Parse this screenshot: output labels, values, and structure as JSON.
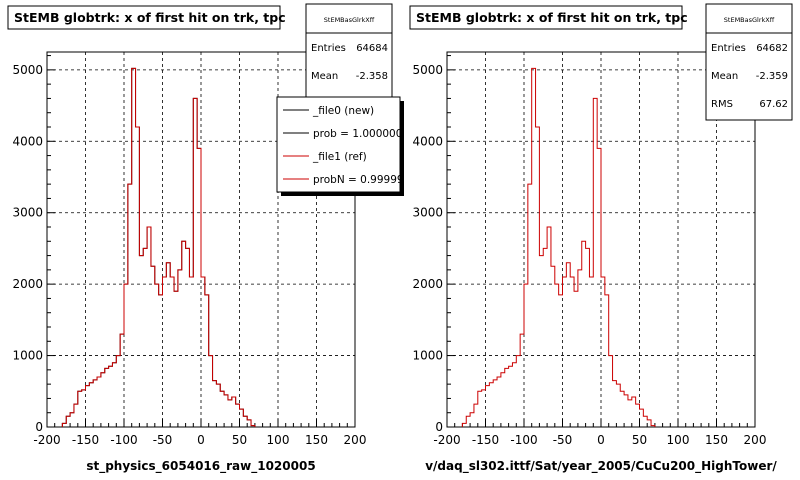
{
  "chart_data": [
    {
      "type": "histogram",
      "title": "StEMB globtrk: x of first hit on trk, tpc",
      "xlabel": "st_physics_6054016_raw_1020005",
      "xlim": [
        -200,
        200
      ],
      "ylim": [
        0,
        5250
      ],
      "x_ticks": [
        "-200",
        "-150",
        "-100",
        "-50",
        "0",
        "50",
        "100",
        "150",
        "200"
      ],
      "y_ticks": [
        "0",
        "1000",
        "2000",
        "3000",
        "4000",
        "5000"
      ],
      "grid": true,
      "stats": {
        "name": "StEMBasGlrkXff",
        "entries_label": "Entries",
        "entries": "64684",
        "mean_label": "Mean",
        "mean": "-2.358"
      },
      "legend": [
        {
          "label": "_file0 (new)",
          "color": "#000000"
        },
        {
          "label": "prob = 1.000000",
          "color": "#000000"
        },
        {
          "label": "_file1 (ref)",
          "color": "#cc0000"
        },
        {
          "label": "probN = 0.99999",
          "color": "#cc0000"
        }
      ],
      "bin_edges_start": -180,
      "bin_width": 5,
      "values": [
        50,
        150,
        200,
        320,
        500,
        520,
        580,
        620,
        660,
        700,
        760,
        820,
        850,
        900,
        1000,
        1300,
        2000,
        3400,
        5020,
        4200,
        2400,
        2500,
        2800,
        2250,
        2000,
        1850,
        2100,
        2300,
        2100,
        1900,
        2200,
        2600,
        2500,
        2100,
        4600,
        3900,
        2100,
        1850,
        1000,
        650,
        600,
        500,
        450,
        380,
        420,
        320,
        250,
        150,
        100,
        20
      ],
      "series_names": [
        "_file0 (new)",
        "_file1 (ref)"
      ],
      "colors": {
        "new": "#000000",
        "ref": "#cc0000"
      }
    },
    {
      "type": "histogram",
      "title": "StEMB globtrk: x of first hit on trk, tpc",
      "xlabel": "v/daq_sl302.ittf/Sat/year_2005/CuCu200_HighTower/",
      "xlim": [
        -200,
        200
      ],
      "ylim": [
        0,
        5250
      ],
      "x_ticks": [
        "-200",
        "-150",
        "-100",
        "-50",
        "0",
        "50",
        "100",
        "150",
        "200"
      ],
      "y_ticks": [
        "0",
        "1000",
        "2000",
        "3000",
        "4000",
        "5000"
      ],
      "grid": true,
      "stats": {
        "name": "StEMBasGlrkXff",
        "entries_label": "Entries",
        "entries": "64682",
        "mean_label": "Mean",
        "mean": "-2.359",
        "rms_label": "RMS",
        "rms": "67.62"
      },
      "bin_edges_start": -180,
      "bin_width": 5,
      "values": [
        50,
        150,
        200,
        320,
        500,
        520,
        580,
        620,
        660,
        700,
        760,
        820,
        850,
        900,
        1000,
        1300,
        2000,
        3400,
        5020,
        4200,
        2400,
        2500,
        2800,
        2250,
        2000,
        1850,
        2100,
        2300,
        2100,
        1900,
        2200,
        2600,
        2500,
        2100,
        4600,
        3900,
        2100,
        1850,
        1000,
        650,
        600,
        500,
        450,
        380,
        420,
        320,
        250,
        150,
        100,
        20
      ],
      "color": "#cc0000"
    }
  ]
}
